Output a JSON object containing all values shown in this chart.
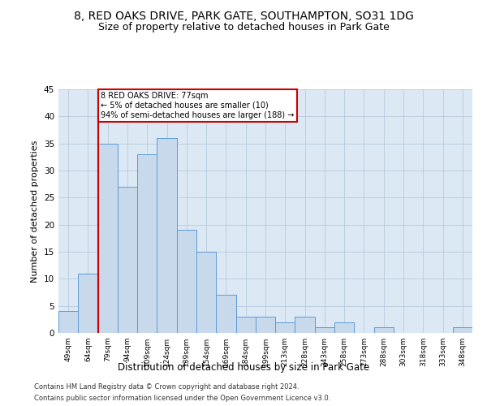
{
  "title1": "8, RED OAKS DRIVE, PARK GATE, SOUTHAMPTON, SO31 1DG",
  "title2": "Size of property relative to detached houses in Park Gate",
  "xlabel": "Distribution of detached houses by size in Park Gate",
  "ylabel": "Number of detached properties",
  "categories": [
    "49sqm",
    "64sqm",
    "79sqm",
    "94sqm",
    "109sqm",
    "124sqm",
    "139sqm",
    "154sqm",
    "169sqm",
    "184sqm",
    "199sqm",
    "213sqm",
    "228sqm",
    "243sqm",
    "258sqm",
    "273sqm",
    "288sqm",
    "303sqm",
    "318sqm",
    "333sqm",
    "348sqm"
  ],
  "values": [
    4,
    11,
    35,
    27,
    33,
    36,
    19,
    15,
    7,
    3,
    3,
    2,
    3,
    1,
    2,
    0,
    1,
    0,
    0,
    0,
    1
  ],
  "bar_color": "#c9d9ec",
  "bar_edge_color": "#5b9bd5",
  "subject_line_color": "#cc0000",
  "annotation_text": "8 RED OAKS DRIVE: 77sqm\n← 5% of detached houses are smaller (10)\n94% of semi-detached houses are larger (188) →",
  "annotation_box_color": "#cc0000",
  "ylim": [
    0,
    45
  ],
  "yticks": [
    0,
    5,
    10,
    15,
    20,
    25,
    30,
    35,
    40,
    45
  ],
  "footer1": "Contains HM Land Registry data © Crown copyright and database right 2024.",
  "footer2": "Contains public sector information licensed under the Open Government Licence v3.0.",
  "bg_color": "#ffffff",
  "plot_bg_color": "#dce9f5",
  "grid_color": "#b0c4d8",
  "title1_fontsize": 10,
  "title2_fontsize": 9,
  "ylabel_fontsize": 8,
  "xlabel_fontsize": 8.5
}
